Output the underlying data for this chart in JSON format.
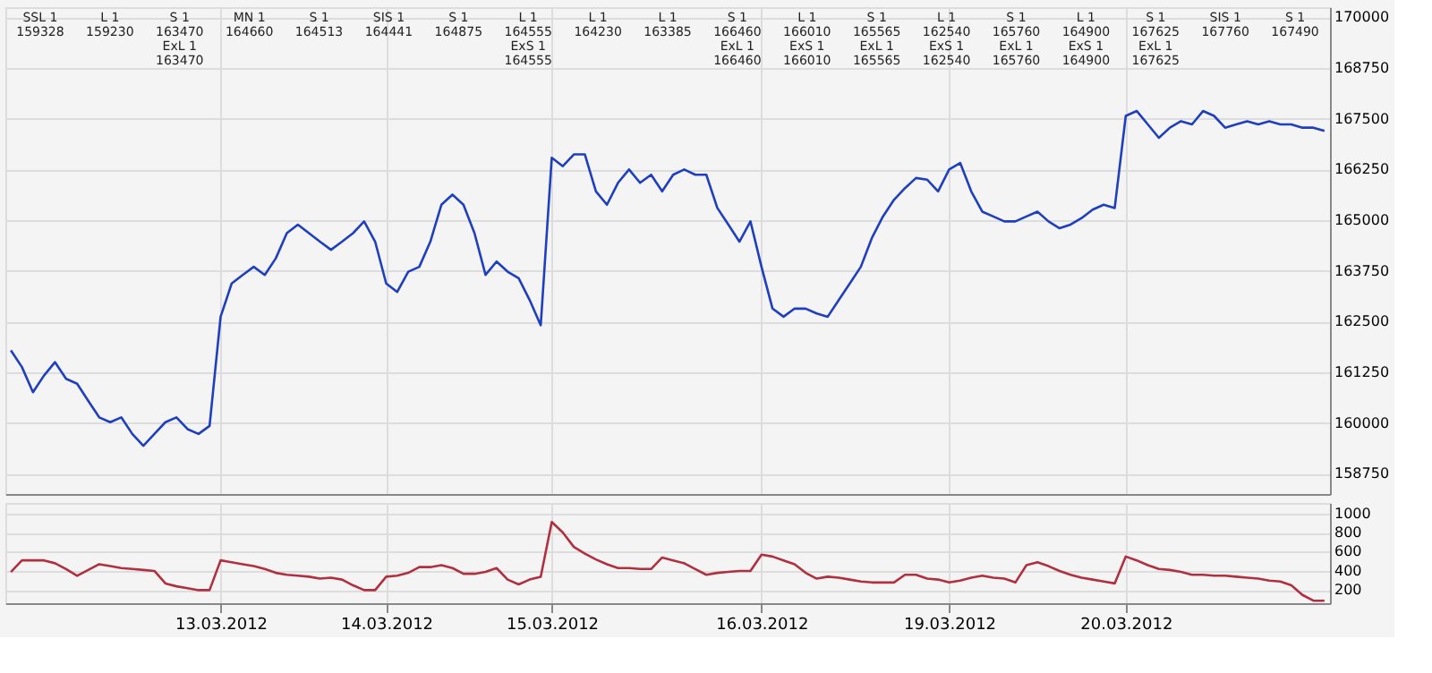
{
  "chart_data": [
    {
      "type": "line",
      "ylim": [
        158250,
        170250
      ],
      "yticks": [
        158750,
        160000,
        161250,
        162500,
        163750,
        165000,
        166250,
        167500,
        168750,
        170000
      ],
      "categories": [
        null,
        null,
        null,
        null,
        null,
        null,
        null,
        null,
        null,
        null,
        null,
        null,
        null,
        null,
        null,
        null,
        null,
        null,
        null,
        "13.03.2012",
        null,
        null,
        null,
        null,
        null,
        null,
        null,
        null,
        null,
        null,
        null,
        null,
        null,
        null,
        "14.03.2012",
        null,
        null,
        null,
        null,
        null,
        null,
        null,
        null,
        null,
        null,
        null,
        null,
        null,
        null,
        "15.03.2012",
        null,
        null,
        null,
        null,
        null,
        null,
        null,
        null,
        null,
        null,
        null,
        null,
        null,
        null,
        null,
        null,
        null,
        null,
        "16.03.2012",
        null,
        null,
        null,
        null,
        null,
        null,
        null,
        null,
        null,
        null,
        null,
        null,
        null,
        null,
        null,
        null,
        "19.03.2012",
        null,
        null,
        null,
        null,
        null,
        null,
        null,
        null,
        null,
        null,
        null,
        null,
        null,
        null,
        null,
        "20.03.2012",
        null,
        null,
        null,
        null,
        null,
        null,
        null,
        null,
        null,
        null,
        null,
        null,
        null,
        null,
        null,
        null,
        null,
        null
      ],
      "tick_labels": "y",
      "grid": true,
      "legend": false,
      "marker": "none",
      "line_style": "solid",
      "series": [
        {
          "color": "#1f3fbf",
          "values": [
            161790,
            161380,
            160760,
            161170,
            161500,
            161090,
            160970,
            160550,
            160140,
            160020,
            160140,
            159730,
            159440,
            159730,
            160020,
            160140,
            159850,
            159730,
            159930,
            162620,
            163440,
            163650,
            163850,
            163650,
            164060,
            164680,
            164890,
            164680,
            164470,
            164270,
            164470,
            164680,
            164970,
            164470,
            163440,
            163230,
            163730,
            163850,
            164470,
            165380,
            165630,
            165380,
            164680,
            163650,
            163980,
            163730,
            163570,
            163030,
            162410,
            166540,
            166330,
            166620,
            166620,
            165710,
            165380,
            165920,
            166250,
            165920,
            166120,
            165710,
            166120,
            166250,
            166120,
            166120,
            165300,
            164890,
            164470,
            164970,
            163850,
            162820,
            162620,
            162820,
            162820,
            162700,
            162620,
            163030,
            163440,
            163850,
            164560,
            165090,
            165500,
            165790,
            166040,
            166000,
            165710,
            166250,
            166410,
            165710,
            165210,
            165090,
            164970,
            164970,
            165090,
            165210,
            164970,
            164800,
            164890,
            165050,
            165260,
            165380,
            165300,
            167570,
            167690,
            167360,
            167030,
            167280,
            167440,
            167360,
            167690,
            167570,
            167280,
            167360,
            167440,
            167360,
            167440,
            167360,
            167360,
            167280,
            167280,
            167200
          ]
        }
      ],
      "annotations": [
        "SSL 1\n159328",
        "L 1\n159230",
        "S 1\n163470\nExL 1\n163470",
        "MN 1\n164660",
        "S 1\n164513",
        "SIS 1\n164441",
        "S 1\n164875",
        "L 1\n164555\nExS 1\n164555",
        "L 1\n164230",
        "L 1\n163385",
        "S 1\n166460\nExL 1\n166460",
        "L 1\n166010\nExS 1\n166010",
        "S 1\n165565\nExL 1\n165565",
        "L 1\n162540\nExS 1\n162540",
        "S 1\n165760\nExL 1\n165760",
        "L 1\n164900\nExS 1\n164900",
        "S 1\n167625\nExL 1\n167625",
        "SIS 1\n167760",
        "S 1\n167490"
      ]
    },
    {
      "type": "line",
      "ylim": [
        64,
        1108
      ],
      "yticks": [
        200,
        400,
        600,
        800,
        1000
      ],
      "categories": [
        null,
        null,
        null,
        null,
        null,
        null,
        null,
        null,
        null,
        null,
        null,
        null,
        null,
        null,
        null,
        null,
        null,
        null,
        null,
        "13.03.2012",
        null,
        null,
        null,
        null,
        null,
        null,
        null,
        null,
        null,
        null,
        null,
        null,
        null,
        null,
        "14.03.2012",
        null,
        null,
        null,
        null,
        null,
        null,
        null,
        null,
        null,
        null,
        null,
        null,
        null,
        null,
        "15.03.2012",
        null,
        null,
        null,
        null,
        null,
        null,
        null,
        null,
        null,
        null,
        null,
        null,
        null,
        null,
        null,
        null,
        null,
        null,
        "16.03.2012",
        null,
        null,
        null,
        null,
        null,
        null,
        null,
        null,
        null,
        null,
        null,
        null,
        null,
        null,
        null,
        null,
        "19.03.2012",
        null,
        null,
        null,
        null,
        null,
        null,
        null,
        null,
        null,
        null,
        null,
        null,
        null,
        null,
        null,
        "20.03.2012",
        null,
        null,
        null,
        null,
        null,
        null,
        null,
        null,
        null,
        null,
        null,
        null,
        null,
        null,
        null,
        null,
        null,
        null
      ],
      "grid": true,
      "legend": false,
      "marker": "none",
      "line_style": "solid",
      "series": [
        {
          "color": "#b03040",
          "values": [
            390,
            510,
            510,
            510,
            480,
            420,
            350,
            410,
            470,
            450,
            430,
            420,
            410,
            400,
            270,
            240,
            220,
            200,
            200,
            510,
            490,
            470,
            450,
            420,
            380,
            360,
            350,
            340,
            320,
            330,
            310,
            250,
            200,
            200,
            340,
            350,
            380,
            440,
            440,
            460,
            430,
            370,
            370,
            390,
            430,
            310,
            260,
            310,
            340,
            910,
            800,
            650,
            580,
            520,
            470,
            430,
            430,
            420,
            420,
            540,
            510,
            480,
            420,
            360,
            380,
            390,
            400,
            400,
            570,
            550,
            510,
            470,
            380,
            320,
            340,
            330,
            310,
            290,
            280,
            280,
            280,
            360,
            360,
            320,
            310,
            280,
            300,
            330,
            350,
            330,
            320,
            280,
            460,
            490,
            450,
            400,
            360,
            330,
            310,
            290,
            270,
            550,
            510,
            460,
            420,
            410,
            390,
            360,
            360,
            350,
            350,
            340,
            330,
            320,
            300,
            290,
            250,
            150,
            90,
            90
          ]
        }
      ]
    }
  ]
}
